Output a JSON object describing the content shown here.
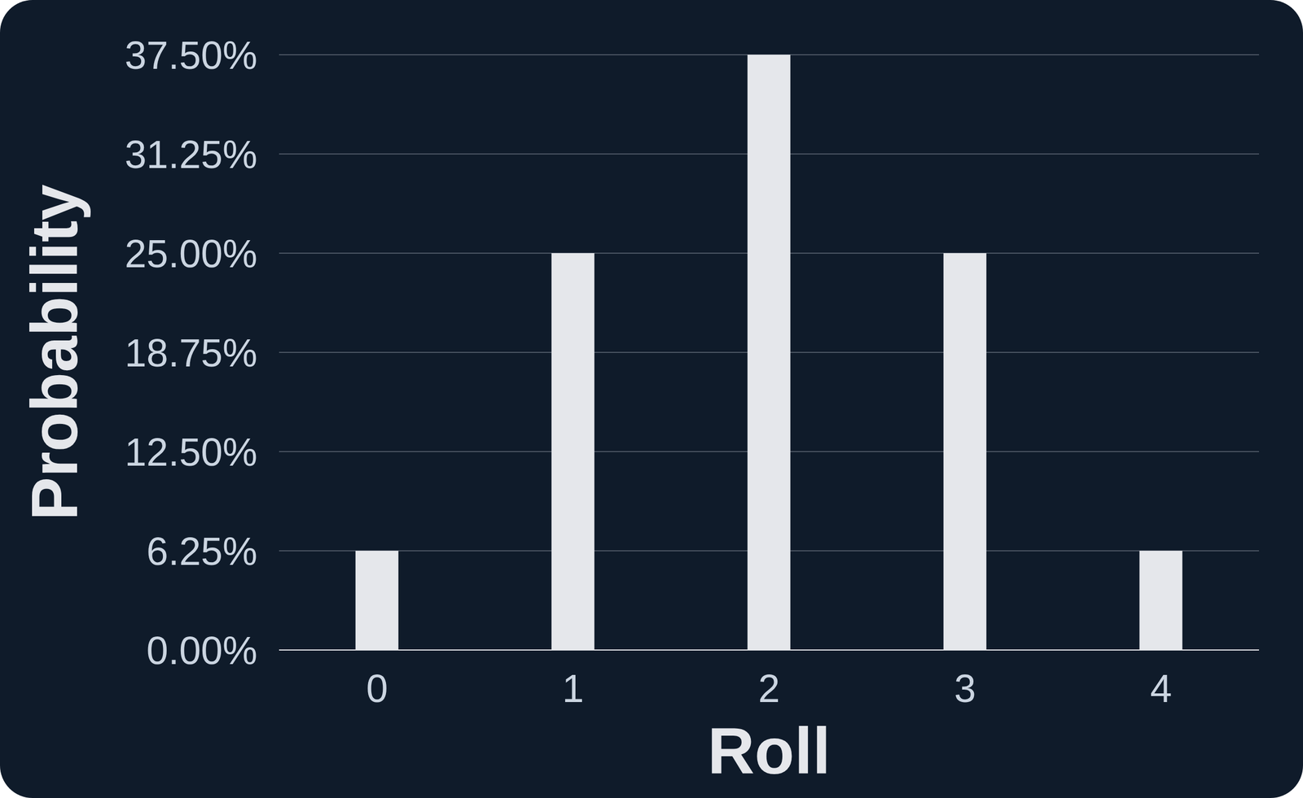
{
  "chart_data": {
    "type": "bar",
    "x_label": "Roll",
    "y_label": "Probability",
    "categories": [
      "0",
      "1",
      "2",
      "3",
      "4"
    ],
    "values": [
      6.25,
      25,
      37.5,
      25,
      6.25
    ],
    "color": "#e5e7eb",
    "ylim": [
      0,
      37.5
    ],
    "yticks": [
      {
        "value": 0,
        "label": "0.00%"
      },
      {
        "value": 6.25,
        "label": "6.25%"
      },
      {
        "value": 12.5,
        "label": "12.50%"
      },
      {
        "value": 18.75,
        "label": "18.75%"
      },
      {
        "value": 25,
        "label": "25.00%"
      },
      {
        "value": 31.25,
        "label": "31.25%"
      },
      {
        "value": 37.5,
        "label": "37.50%"
      }
    ],
    "grid": true
  }
}
